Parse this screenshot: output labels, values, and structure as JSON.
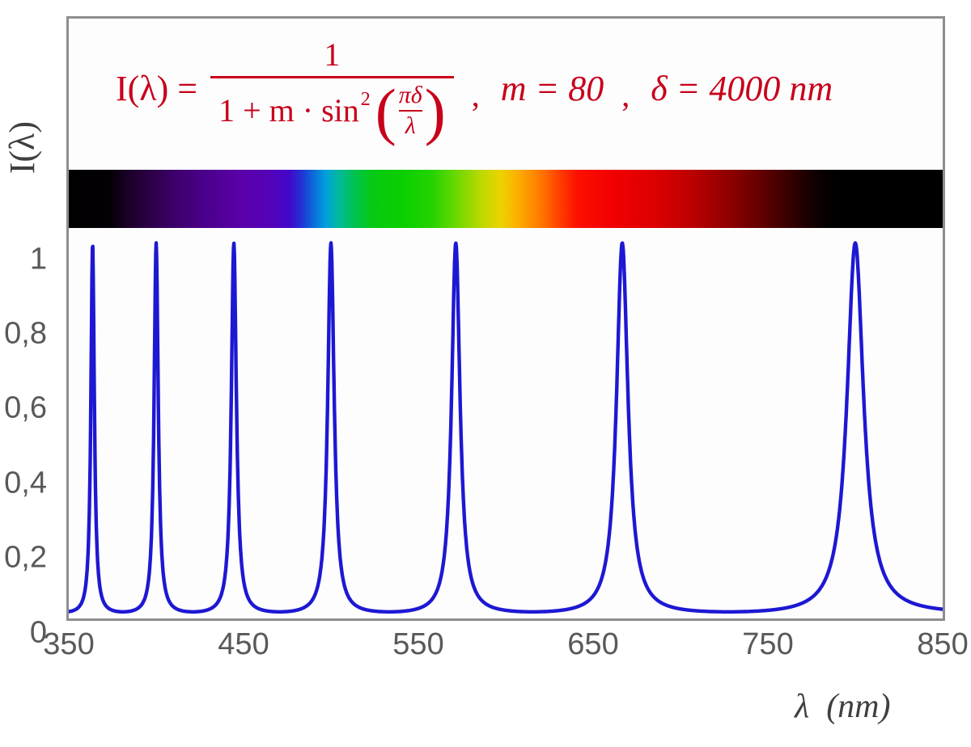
{
  "formula": {
    "lhs": "I(λ) =",
    "numerator": "1",
    "denominator_text": "1 + m · sin",
    "denominator_sup": "2",
    "lparen": "(",
    "rparen": ")",
    "inner_numerator": "πδ",
    "inner_denominator": "λ",
    "separator": ",",
    "param_m": "m = 80",
    "param_delta": "δ = 4000 nm"
  },
  "axes": {
    "y_title": "I(λ)",
    "x_title": "λ (nm)",
    "y_tick_labels": [
      "1",
      "0,8",
      "0,6",
      "0,4",
      "0,2",
      "0"
    ],
    "x_tick_labels": [
      "350",
      "450",
      "550",
      "650",
      "750",
      "850"
    ]
  },
  "colors": {
    "formula_red": "#C8001A",
    "curve_blue": "#1D18D2",
    "frame_border": "#8E8E8E",
    "tick_text": "#595959",
    "axis_title_text": "#3F3F3F",
    "plot_background": "#FDFDFE"
  },
  "chart_data": {
    "type": "line",
    "title": "Interferometer transmission function I(λ) with visible-spectrum bar",
    "function": "I(λ) = 1 / (1 + m·sin²(πδ/λ))",
    "params": {
      "m": 80,
      "delta_nm": 4000
    },
    "x_range_nm": [
      350,
      850
    ],
    "y_range": [
      0,
      1
    ],
    "sample_step_nm": 0.25,
    "x_tick_values": [
      350,
      450,
      550,
      650,
      750,
      850
    ],
    "y_tick_values": [
      1,
      0.8,
      0.6,
      0.4,
      0.2,
      0
    ],
    "peaks_nm": [
      363.6,
      400.0,
      444.4,
      500.0,
      571.4,
      666.7,
      800.0
    ],
    "peak_value": 1,
    "line_color": "#1D18D2",
    "grid": false,
    "legend": false,
    "spectrum_bar": {
      "range_nm": [
        350,
        850
      ],
      "stops": [
        {
          "nm": 350,
          "color": "#000000"
        },
        {
          "nm": 373,
          "color": "#040006"
        },
        {
          "nm": 385,
          "color": "#1d0029"
        },
        {
          "nm": 398,
          "color": "#2e004b"
        },
        {
          "nm": 412,
          "color": "#3e006d"
        },
        {
          "nm": 430,
          "color": "#4c008e"
        },
        {
          "nm": 448,
          "color": "#5a00a8"
        },
        {
          "nm": 465,
          "color": "#5503b8"
        },
        {
          "nm": 476,
          "color": "#4306c9"
        },
        {
          "nm": 483,
          "color": "#2330d5"
        },
        {
          "nm": 490,
          "color": "#0b6cd8"
        },
        {
          "nm": 497,
          "color": "#00a0dd"
        },
        {
          "nm": 504,
          "color": "#00b9a2"
        },
        {
          "nm": 513,
          "color": "#00c254"
        },
        {
          "nm": 524,
          "color": "#06ca12"
        },
        {
          "nm": 542,
          "color": "#0ccf00"
        },
        {
          "nm": 558,
          "color": "#25d300"
        },
        {
          "nm": 573,
          "color": "#72d800"
        },
        {
          "nm": 586,
          "color": "#bcd900"
        },
        {
          "nm": 597,
          "color": "#ecd300"
        },
        {
          "nm": 607,
          "color": "#fdae00"
        },
        {
          "nm": 619,
          "color": "#ff7d00"
        },
        {
          "nm": 630,
          "color": "#ff4300"
        },
        {
          "nm": 641,
          "color": "#fc1000"
        },
        {
          "nm": 662,
          "color": "#f10000"
        },
        {
          "nm": 688,
          "color": "#da0000"
        },
        {
          "nm": 708,
          "color": "#b80000"
        },
        {
          "nm": 728,
          "color": "#8f0000"
        },
        {
          "nm": 746,
          "color": "#630000"
        },
        {
          "nm": 760,
          "color": "#3d0000"
        },
        {
          "nm": 773,
          "color": "#190000"
        },
        {
          "nm": 784,
          "color": "#050000"
        },
        {
          "nm": 790,
          "color": "#000000"
        },
        {
          "nm": 850,
          "color": "#000000"
        }
      ]
    }
  }
}
